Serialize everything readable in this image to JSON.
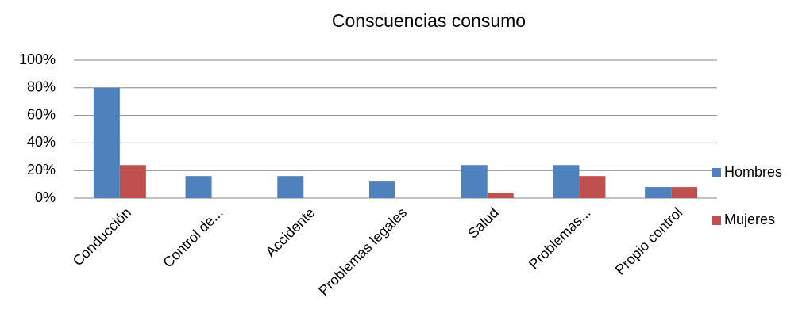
{
  "chart_data": {
    "type": "bar",
    "title": "Conscuencias consumo",
    "categories": [
      "Conducción",
      "Control de...",
      "Accidente",
      "Problemas legales",
      "Salud",
      "Problemas...",
      "Propio control"
    ],
    "series": [
      {
        "name": "Hombres",
        "color": "#4f81bd",
        "values": [
          80,
          16,
          16,
          12,
          24,
          24,
          8
        ]
      },
      {
        "name": "Mujeres",
        "color": "#c0504d",
        "values": [
          24,
          0,
          0,
          0,
          4,
          16,
          8
        ]
      }
    ],
    "ylim": [
      0,
      100
    ],
    "yticks": [
      {
        "value": 0,
        "label": "0%"
      },
      {
        "value": 20,
        "label": "20%"
      },
      {
        "value": 40,
        "label": "40%"
      },
      {
        "value": 60,
        "label": "60%"
      },
      {
        "value": 80,
        "label": "80%"
      },
      {
        "value": 100,
        "label": "100%"
      }
    ],
    "grid": true,
    "legend": "right"
  }
}
